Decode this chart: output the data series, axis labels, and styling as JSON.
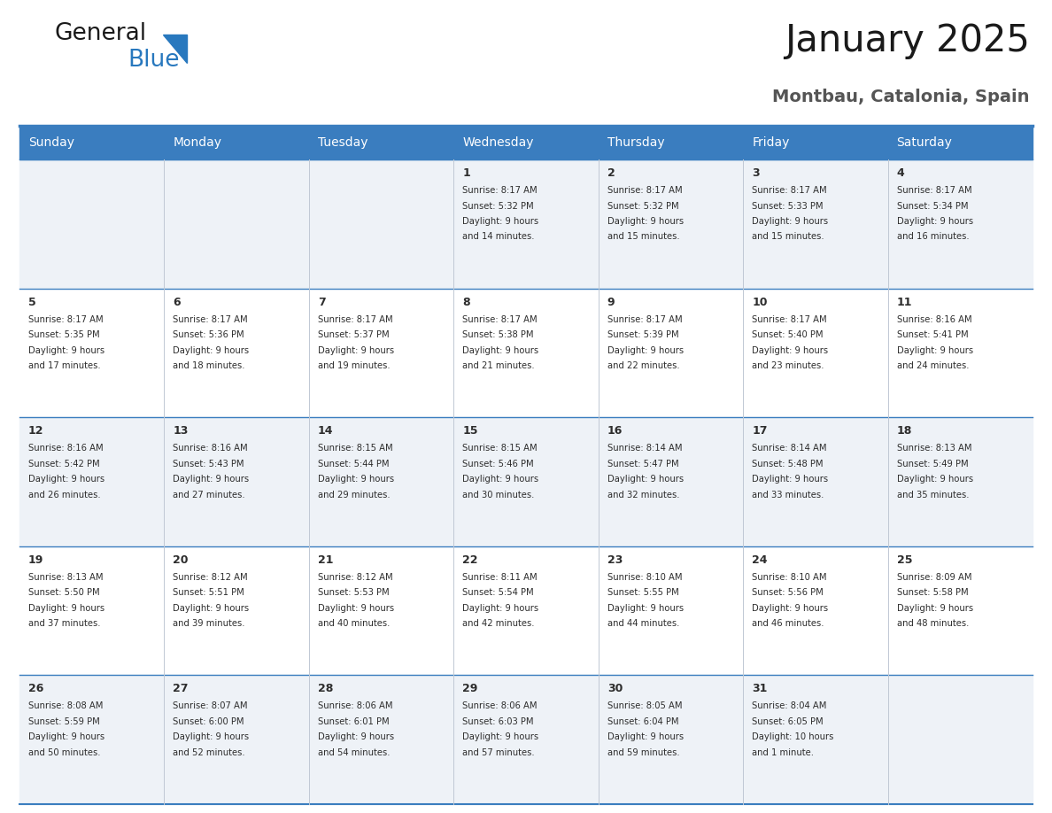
{
  "title": "January 2025",
  "subtitle": "Montbau, Catalonia, Spain",
  "header_color": "#3a7dbf",
  "header_text_color": "#ffffff",
  "cell_bg_even": "#eef2f7",
  "cell_bg_odd": "#ffffff",
  "border_color": "#3a7dbf",
  "sep_line_color": "#3a7dbf",
  "grid_line_color": "#c0c8d4",
  "text_color": "#2d2d2d",
  "day_names": [
    "Sunday",
    "Monday",
    "Tuesday",
    "Wednesday",
    "Thursday",
    "Friday",
    "Saturday"
  ],
  "days": [
    {
      "day": 1,
      "col": 3,
      "row": 0,
      "sunrise": "8:17 AM",
      "sunset": "5:32 PM",
      "daylight": "9 hours and 14 minutes."
    },
    {
      "day": 2,
      "col": 4,
      "row": 0,
      "sunrise": "8:17 AM",
      "sunset": "5:32 PM",
      "daylight": "9 hours and 15 minutes."
    },
    {
      "day": 3,
      "col": 5,
      "row": 0,
      "sunrise": "8:17 AM",
      "sunset": "5:33 PM",
      "daylight": "9 hours and 15 minutes."
    },
    {
      "day": 4,
      "col": 6,
      "row": 0,
      "sunrise": "8:17 AM",
      "sunset": "5:34 PM",
      "daylight": "9 hours and 16 minutes."
    },
    {
      "day": 5,
      "col": 0,
      "row": 1,
      "sunrise": "8:17 AM",
      "sunset": "5:35 PM",
      "daylight": "9 hours and 17 minutes."
    },
    {
      "day": 6,
      "col": 1,
      "row": 1,
      "sunrise": "8:17 AM",
      "sunset": "5:36 PM",
      "daylight": "9 hours and 18 minutes."
    },
    {
      "day": 7,
      "col": 2,
      "row": 1,
      "sunrise": "8:17 AM",
      "sunset": "5:37 PM",
      "daylight": "9 hours and 19 minutes."
    },
    {
      "day": 8,
      "col": 3,
      "row": 1,
      "sunrise": "8:17 AM",
      "sunset": "5:38 PM",
      "daylight": "9 hours and 21 minutes."
    },
    {
      "day": 9,
      "col": 4,
      "row": 1,
      "sunrise": "8:17 AM",
      "sunset": "5:39 PM",
      "daylight": "9 hours and 22 minutes."
    },
    {
      "day": 10,
      "col": 5,
      "row": 1,
      "sunrise": "8:17 AM",
      "sunset": "5:40 PM",
      "daylight": "9 hours and 23 minutes."
    },
    {
      "day": 11,
      "col": 6,
      "row": 1,
      "sunrise": "8:16 AM",
      "sunset": "5:41 PM",
      "daylight": "9 hours and 24 minutes."
    },
    {
      "day": 12,
      "col": 0,
      "row": 2,
      "sunrise": "8:16 AM",
      "sunset": "5:42 PM",
      "daylight": "9 hours and 26 minutes."
    },
    {
      "day": 13,
      "col": 1,
      "row": 2,
      "sunrise": "8:16 AM",
      "sunset": "5:43 PM",
      "daylight": "9 hours and 27 minutes."
    },
    {
      "day": 14,
      "col": 2,
      "row": 2,
      "sunrise": "8:15 AM",
      "sunset": "5:44 PM",
      "daylight": "9 hours and 29 minutes."
    },
    {
      "day": 15,
      "col": 3,
      "row": 2,
      "sunrise": "8:15 AM",
      "sunset": "5:46 PM",
      "daylight": "9 hours and 30 minutes."
    },
    {
      "day": 16,
      "col": 4,
      "row": 2,
      "sunrise": "8:14 AM",
      "sunset": "5:47 PM",
      "daylight": "9 hours and 32 minutes."
    },
    {
      "day": 17,
      "col": 5,
      "row": 2,
      "sunrise": "8:14 AM",
      "sunset": "5:48 PM",
      "daylight": "9 hours and 33 minutes."
    },
    {
      "day": 18,
      "col": 6,
      "row": 2,
      "sunrise": "8:13 AM",
      "sunset": "5:49 PM",
      "daylight": "9 hours and 35 minutes."
    },
    {
      "day": 19,
      "col": 0,
      "row": 3,
      "sunrise": "8:13 AM",
      "sunset": "5:50 PM",
      "daylight": "9 hours and 37 minutes."
    },
    {
      "day": 20,
      "col": 1,
      "row": 3,
      "sunrise": "8:12 AM",
      "sunset": "5:51 PM",
      "daylight": "9 hours and 39 minutes."
    },
    {
      "day": 21,
      "col": 2,
      "row": 3,
      "sunrise": "8:12 AM",
      "sunset": "5:53 PM",
      "daylight": "9 hours and 40 minutes."
    },
    {
      "day": 22,
      "col": 3,
      "row": 3,
      "sunrise": "8:11 AM",
      "sunset": "5:54 PM",
      "daylight": "9 hours and 42 minutes."
    },
    {
      "day": 23,
      "col": 4,
      "row": 3,
      "sunrise": "8:10 AM",
      "sunset": "5:55 PM",
      "daylight": "9 hours and 44 minutes."
    },
    {
      "day": 24,
      "col": 5,
      "row": 3,
      "sunrise": "8:10 AM",
      "sunset": "5:56 PM",
      "daylight": "9 hours and 46 minutes."
    },
    {
      "day": 25,
      "col": 6,
      "row": 3,
      "sunrise": "8:09 AM",
      "sunset": "5:58 PM",
      "daylight": "9 hours and 48 minutes."
    },
    {
      "day": 26,
      "col": 0,
      "row": 4,
      "sunrise": "8:08 AM",
      "sunset": "5:59 PM",
      "daylight": "9 hours and 50 minutes."
    },
    {
      "day": 27,
      "col": 1,
      "row": 4,
      "sunrise": "8:07 AM",
      "sunset": "6:00 PM",
      "daylight": "9 hours and 52 minutes."
    },
    {
      "day": 28,
      "col": 2,
      "row": 4,
      "sunrise": "8:06 AM",
      "sunset": "6:01 PM",
      "daylight": "9 hours and 54 minutes."
    },
    {
      "day": 29,
      "col": 3,
      "row": 4,
      "sunrise": "8:06 AM",
      "sunset": "6:03 PM",
      "daylight": "9 hours and 57 minutes."
    },
    {
      "day": 30,
      "col": 4,
      "row": 4,
      "sunrise": "8:05 AM",
      "sunset": "6:04 PM",
      "daylight": "9 hours and 59 minutes."
    },
    {
      "day": 31,
      "col": 5,
      "row": 4,
      "sunrise": "8:04 AM",
      "sunset": "6:05 PM",
      "daylight": "10 hours and 1 minute."
    }
  ],
  "logo_color_general": "#1a1a1a",
  "logo_color_blue": "#2878be",
  "logo_triangle_color": "#2878be",
  "title_fontsize": 30,
  "subtitle_fontsize": 14,
  "header_fontsize": 10,
  "day_num_fontsize": 9,
  "cell_text_fontsize": 7.2
}
